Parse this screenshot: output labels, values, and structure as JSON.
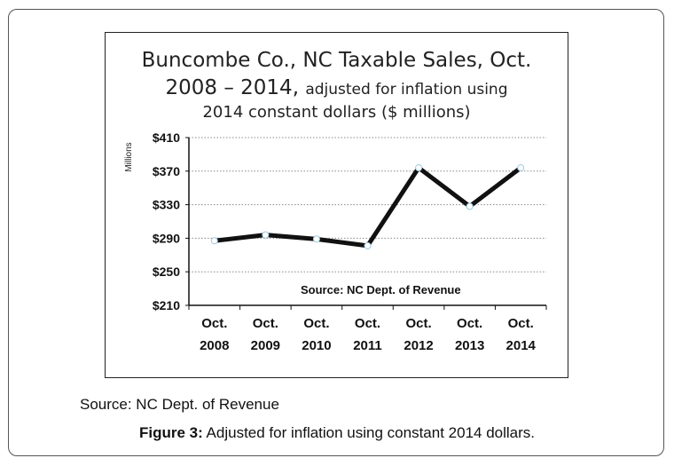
{
  "chart_data": {
    "type": "line",
    "title_line1": "Buncombe Co., NC Taxable Sales, Oct.",
    "title_line2_main": "2008 – 2014,",
    "title_line2_small": "adjusted for inflation using",
    "title_line3": "2014 constant dollars ($ millions)",
    "ylabel": "Millions",
    "categories": [
      [
        "Oct.",
        "2008"
      ],
      [
        "Oct.",
        "2009"
      ],
      [
        "Oct.",
        "2010"
      ],
      [
        "Oct.",
        "2011"
      ],
      [
        "Oct.",
        "2012"
      ],
      [
        "Oct.",
        "2013"
      ],
      [
        "Oct.",
        "2014"
      ]
    ],
    "values": [
      287,
      294,
      289,
      281,
      374,
      328,
      374
    ],
    "ylim": [
      210,
      410
    ],
    "yticks": [
      210,
      250,
      290,
      330,
      370,
      410
    ],
    "ytick_labels": [
      "$210",
      "$250",
      "$290",
      "$330",
      "$370",
      "$410"
    ],
    "grid": true,
    "annotation": "Source: NC Dept. of Revenue",
    "line_color": "#111111"
  },
  "caption": {
    "source": "Source: NC Dept. of Revenue",
    "figure_label": "Figure 3:",
    "figure_text": " Adjusted for inflation using constant 2014 dollars."
  }
}
